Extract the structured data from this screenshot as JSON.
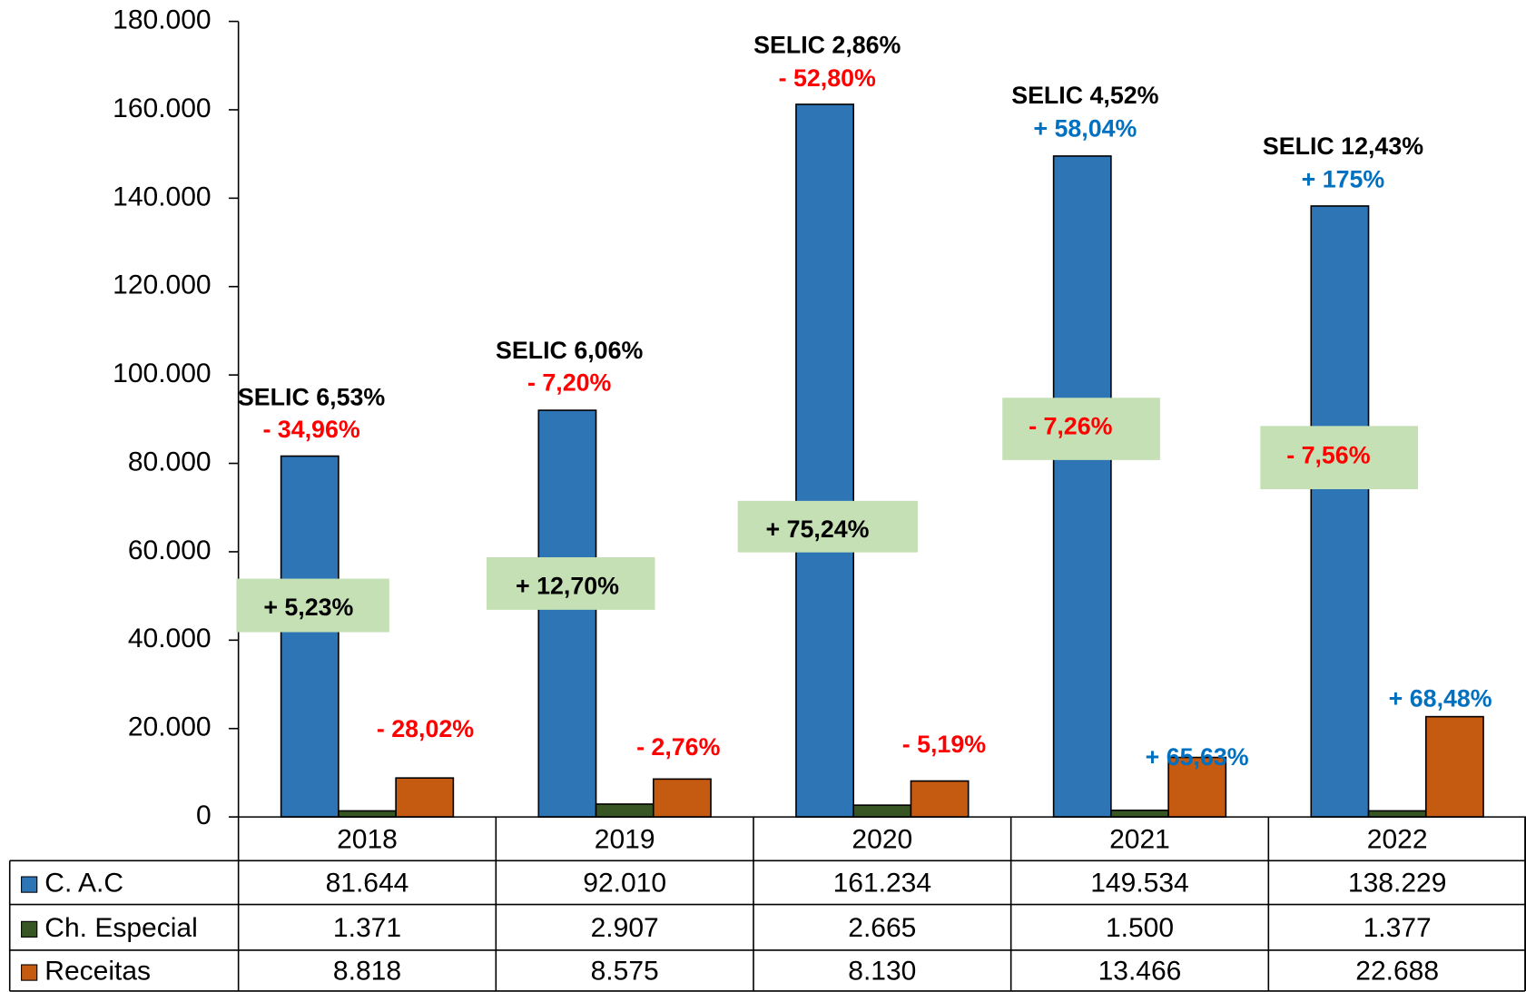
{
  "chart_data": {
    "type": "bar",
    "categories": [
      "2018",
      "2019",
      "2020",
      "2021",
      "2022"
    ],
    "series": [
      {
        "name": "C. A.C",
        "color": "#2e75b6",
        "values": [
          81644,
          92010,
          161234,
          149534,
          138229
        ],
        "value_labels": [
          "81.644",
          "92.010",
          "161.234",
          "149.534",
          "138.229"
        ]
      },
      {
        "name": "Ch. Especial",
        "color": "#375623",
        "values": [
          1371,
          2907,
          2665,
          1500,
          1377
        ],
        "value_labels": [
          "1.371",
          "2.907",
          "2.665",
          "1.500",
          "1.377"
        ]
      },
      {
        "name": "Receitas",
        "color": "#c55a11",
        "values": [
          8818,
          8575,
          8130,
          13466,
          22688
        ],
        "value_labels": [
          "8.818",
          "8.575",
          "8.130",
          "13.466",
          "22.688"
        ]
      }
    ],
    "ylim": [
      0,
      180000
    ],
    "yticks": [
      0,
      {
        "value": 20000,
        "label": "20.000"
      },
      {
        "value": 40000,
        "label": "40.000"
      },
      {
        "value": 60000,
        "label": "60.000"
      },
      {
        "value": 80000,
        "label": "80.000"
      },
      {
        "value": 100000,
        "label": "100.000"
      },
      {
        "value": 120000,
        "label": "120.000"
      },
      {
        "value": 140000,
        "label": "140.000"
      },
      {
        "value": 160000,
        "label": "160.000"
      },
      {
        "value": 180000,
        "label": "180.000"
      }
    ],
    "data_table": true,
    "annotations": [
      {
        "selic": "SELIC 6,53%",
        "cac": {
          "text": "- 34,96%",
          "color": "#ff0000"
        },
        "ch": {
          "text": "+ 5,23%",
          "color": "#000000"
        },
        "rec": {
          "text": "- 28,02%",
          "color": "#ff0000"
        }
      },
      {
        "selic": "SELIC  6,06%",
        "cac": {
          "text": "- 7,20%",
          "color": "#ff0000"
        },
        "ch": {
          "text": "+ 12,70%",
          "color": "#000000"
        },
        "rec": {
          "text": "- 2,76%",
          "color": "#ff0000"
        }
      },
      {
        "selic": "SELIC  2,86%",
        "cac": {
          "text": "- 52,80%",
          "color": "#ff0000"
        },
        "ch": {
          "text": "+ 75,24%",
          "color": "#000000"
        },
        "rec": {
          "text": "- 5,19%",
          "color": "#ff0000"
        }
      },
      {
        "selic": "SELIC  4,52%",
        "cac": {
          "text": "+ 58,04%",
          "color": "#0070c0"
        },
        "ch": {
          "text": "- 7,26%",
          "color": "#ff0000"
        },
        "rec": {
          "text": "+ 65,63%",
          "color": "#0070c0"
        }
      },
      {
        "selic": "SELIC 12,43%",
        "cac": {
          "text": "+ 175%",
          "color": "#0070c0"
        },
        "ch": {
          "text": "- 7,56%",
          "color": "#ff0000"
        },
        "rec": {
          "text": "+ 68,48%",
          "color": "#0070c0"
        }
      }
    ]
  }
}
